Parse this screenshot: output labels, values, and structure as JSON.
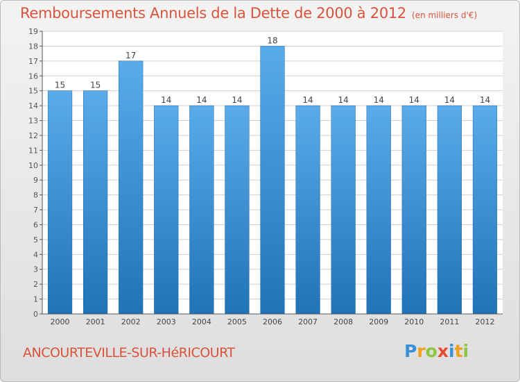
{
  "header": {
    "title": "Remboursements Annuels de la Dette de 2000 à 2012",
    "unit": "(en milliers d'€)"
  },
  "footer": {
    "place": "ANCOURTEVILLE-SUR-HéRICOURT",
    "logo_letters": [
      "P",
      "r",
      "o",
      "x",
      "i",
      "t",
      "i"
    ]
  },
  "colors": {
    "bar_top": "#5aabea",
    "bar_bottom": "#2173b7",
    "title": "#d9533b",
    "grid": "#cfcfcf"
  },
  "chart_data": {
    "type": "bar",
    "categories": [
      "2000",
      "2001",
      "2002",
      "2003",
      "2004",
      "2005",
      "2006",
      "2007",
      "2008",
      "2009",
      "2010",
      "2011",
      "2012"
    ],
    "values": [
      15,
      15,
      17,
      14,
      14,
      14,
      18,
      14,
      14,
      14,
      14,
      14,
      14
    ],
    "ylim": [
      0,
      19
    ],
    "yticks": [
      0,
      1,
      2,
      3,
      4,
      5,
      6,
      7,
      8,
      9,
      10,
      11,
      12,
      13,
      14,
      15,
      16,
      17,
      18,
      19
    ],
    "grid": true,
    "data_labels": true
  }
}
